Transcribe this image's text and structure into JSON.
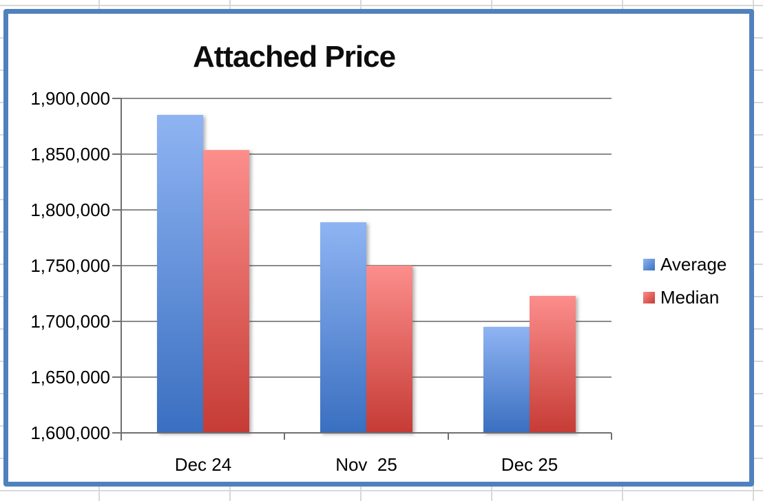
{
  "chart_data": {
    "type": "bar",
    "title": "Attached Price",
    "categories": [
      "Dec 24",
      "Nov  25",
      "Dec 25"
    ],
    "series": [
      {
        "name": "Average",
        "values": [
          1885000,
          1789000,
          1695000
        ],
        "color_top": "#8fb4f3",
        "color_bottom": "#3a6fc0"
      },
      {
        "name": "Median",
        "values": [
          1854000,
          1750000,
          1723000
        ],
        "color_top": "#fc8e8c",
        "color_bottom": "#c63b35"
      }
    ],
    "ylim": [
      1600000,
      1900000
    ],
    "ytick_step": 50000,
    "ytick_labels": [
      "1,900,000",
      "1,850,000",
      "1,800,000",
      "1,750,000",
      "1,700,000",
      "1,650,000",
      "1,600,000"
    ],
    "grid": true,
    "legend_position": "right"
  },
  "colors": {
    "chart_border": "#4f81bd",
    "gridline": "#8a8a8a",
    "axis": "#6f6f6f",
    "sheet_gridline": "#d8d8d8",
    "text": "#000000"
  }
}
